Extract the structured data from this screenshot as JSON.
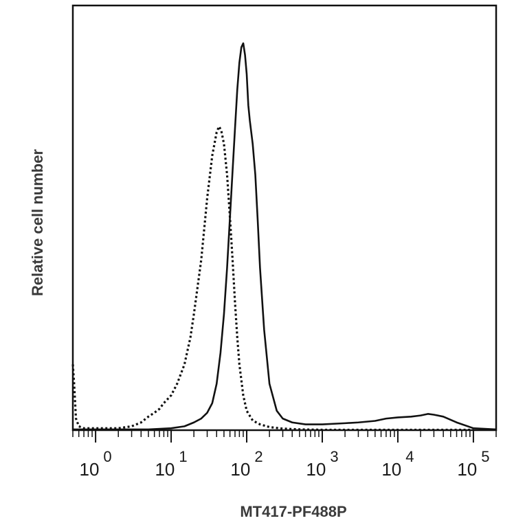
{
  "chart_data": {
    "type": "line",
    "xlabel": "MT417-PF488P",
    "ylabel": "Relative cell number",
    "x_scale": "log",
    "xlim": [
      0.5,
      200000
    ],
    "ylim": [
      0,
      100
    ],
    "grid": false,
    "x_ticks": [
      {
        "base": "10",
        "exp": "0",
        "value": 1
      },
      {
        "base": "10",
        "exp": "1",
        "value": 10
      },
      {
        "base": "10",
        "exp": "2",
        "value": 100
      },
      {
        "base": "10",
        "exp": "3",
        "value": 1000
      },
      {
        "base": "10",
        "exp": "4",
        "value": 10000
      },
      {
        "base": "10",
        "exp": "5",
        "value": 100000
      }
    ],
    "series": [
      {
        "style": "dotted",
        "color": "#111111",
        "x": [
          0.5,
          0.52,
          0.55,
          0.6,
          0.7,
          1,
          2,
          3,
          4,
          5,
          6,
          7,
          8,
          10,
          12,
          15,
          18,
          20,
          25,
          30,
          35,
          40,
          43,
          46,
          50,
          55,
          60,
          65,
          70,
          75,
          80,
          90,
          100,
          120,
          150,
          200,
          300,
          500,
          1000,
          3000,
          10000,
          100000
        ],
        "y": [
          17,
          12,
          3,
          1,
          0.5,
          0.5,
          0.5,
          1,
          2,
          3.5,
          4.5,
          5.5,
          7,
          9,
          12,
          17,
          24,
          30,
          44,
          60,
          71,
          77,
          78.5,
          77.5,
          74,
          66,
          55,
          44,
          33,
          24,
          17,
          9,
          5,
          2.5,
          1.5,
          0.8,
          0.4,
          0.2,
          0.1,
          0.1,
          0.1,
          0.1
        ]
      },
      {
        "style": "solid",
        "color": "#111111",
        "x": [
          0.5,
          0.55,
          0.6,
          0.7,
          1,
          2,
          5,
          10,
          15,
          20,
          25,
          30,
          35,
          40,
          45,
          50,
          55,
          60,
          65,
          70,
          75,
          80,
          85,
          90,
          95,
          100,
          105,
          110,
          120,
          130,
          140,
          150,
          170,
          200,
          250,
          300,
          400,
          600,
          1000,
          2000,
          3000,
          5000,
          7000,
          10000,
          15000,
          20000,
          25000,
          30000,
          40000,
          60000,
          100000,
          200000
        ],
        "y": [
          0.2,
          0.2,
          0.2,
          0.2,
          0.2,
          0.2,
          0.2,
          0.5,
          1,
          2,
          3,
          4.5,
          7,
          12,
          20,
          30,
          42,
          55,
          67,
          78,
          88,
          95,
          99,
          100,
          97,
          92,
          84,
          80,
          74,
          66,
          54,
          42,
          26,
          12,
          5,
          3,
          2,
          1.5,
          1.5,
          1.8,
          2,
          2.4,
          3,
          3.3,
          3.5,
          3.8,
          4.2,
          4,
          3.5,
          2,
          0.5,
          0.2
        ]
      }
    ]
  }
}
